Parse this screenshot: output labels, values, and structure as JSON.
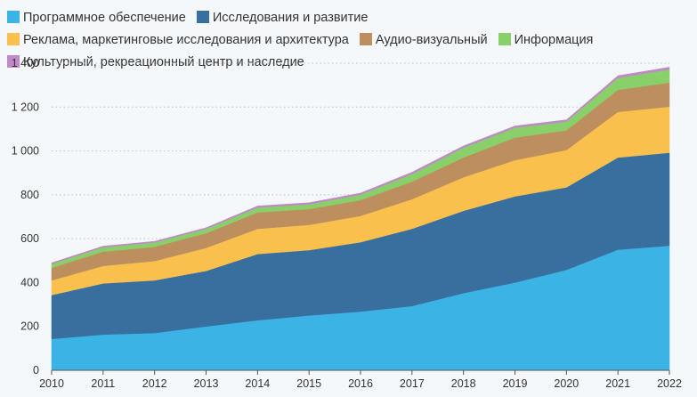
{
  "chart_data": {
    "type": "area",
    "stacked": true,
    "title": "",
    "xlabel": "",
    "ylabel": "",
    "x": [
      "2010",
      "2011",
      "2012",
      "2013",
      "2014",
      "2015",
      "2016",
      "2017",
      "2018",
      "2019",
      "2020",
      "2021",
      "2022"
    ],
    "ylim": [
      0,
      1400
    ],
    "yticks": [
      0,
      200,
      400,
      600,
      800,
      1000,
      1200,
      1400
    ],
    "ytick_labels": [
      "0",
      "200",
      "400",
      "600",
      "800",
      "1 000",
      "1 200",
      "1 400"
    ],
    "grid": "horizontal-dotted",
    "legend_position": "top-left",
    "series": [
      {
        "name": "Программное обеспечение",
        "color": "#3bb3e4",
        "values": [
          143,
          163,
          170,
          200,
          228,
          250,
          268,
          293,
          352,
          400,
          458,
          550,
          568
        ]
      },
      {
        "name": "Исследования и развитие",
        "color": "#396f9f",
        "values": [
          200,
          233,
          240,
          253,
          302,
          298,
          316,
          352,
          375,
          393,
          376,
          420,
          424
        ]
      },
      {
        "name": "Реклама, маркетинговые исследования и архитектура",
        "color": "#f9c04d",
        "values": [
          67,
          80,
          88,
          105,
          115,
          115,
          120,
          135,
          153,
          165,
          170,
          208,
          210
        ]
      },
      {
        "name": "Аудио-визуальный",
        "color": "#be8f5e",
        "values": [
          57,
          65,
          65,
          67,
          75,
          72,
          72,
          80,
          90,
          103,
          90,
          100,
          110
        ]
      },
      {
        "name": "Информация",
        "color": "#89cf6a",
        "values": [
          18,
          20,
          20,
          20,
          22,
          22,
          25,
          35,
          45,
          45,
          40,
          55,
          60
        ]
      },
      {
        "name": "Культурный, рекреационный центр и наследие",
        "color": "#c089c7",
        "values": [
          5,
          5,
          5,
          5,
          7,
          7,
          7,
          8,
          8,
          8,
          8,
          10,
          10
        ]
      }
    ]
  }
}
